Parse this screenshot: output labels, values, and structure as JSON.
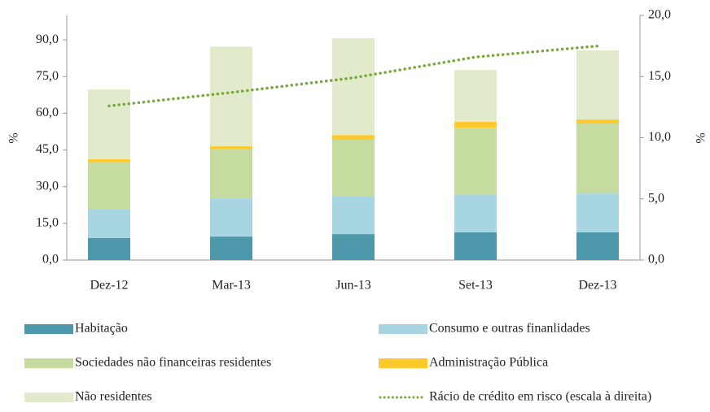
{
  "chart_data": {
    "type": "bar",
    "categories": [
      "Dez-12",
      "Mar-13",
      "Jun-13",
      "Set-13",
      "Dez-13"
    ],
    "stacked": true,
    "ylabel": "%",
    "y2label": "%",
    "ylim": [
      0,
      100
    ],
    "yticks": [
      {
        "value": 0,
        "label": "0,0"
      },
      {
        "value": 15,
        "label": "15,0"
      },
      {
        "value": 30,
        "label": "30,0"
      },
      {
        "value": 45,
        "label": "45,0"
      },
      {
        "value": 60,
        "label": "60,0"
      },
      {
        "value": 75,
        "label": "75,0"
      },
      {
        "value": 90,
        "label": "90,0"
      }
    ],
    "y2lim": [
      0,
      20
    ],
    "y2ticks": [
      {
        "value": 0,
        "label": "0,0"
      },
      {
        "value": 5,
        "label": "5,0"
      },
      {
        "value": 10,
        "label": "10,0"
      },
      {
        "value": 15,
        "label": "15,0"
      },
      {
        "value": 20,
        "label": "20,0"
      }
    ],
    "series": [
      {
        "name": "Habitação",
        "color": "#4e98ab",
        "values": [
          9.0,
          9.6,
          10.6,
          11.3,
          11.3
        ]
      },
      {
        "name": "Consumo e outras finanlidades",
        "color": "#a8d5e2",
        "values": [
          11.9,
          15.6,
          15.6,
          15.3,
          15.9
        ]
      },
      {
        "name": "Sociedades não financeiras residentes",
        "color": "#c5dba0",
        "values": [
          19.0,
          20.3,
          23.0,
          27.5,
          28.6
        ]
      },
      {
        "name": "Administração Pública",
        "color": "#ffc92e",
        "values": [
          1.3,
          1.0,
          1.9,
          2.4,
          1.7
        ]
      },
      {
        "name": "Não residentes",
        "color": "#e1ebcb",
        "values": [
          28.5,
          40.8,
          39.6,
          21.2,
          28.2
        ]
      },
      {
        "name": "Rácio de crédito em risco (escala à direita)",
        "color": "#78a83a",
        "type": "line",
        "axis": "y2",
        "values": [
          12.6,
          13.7,
          14.9,
          16.6,
          17.5
        ]
      }
    ]
  }
}
